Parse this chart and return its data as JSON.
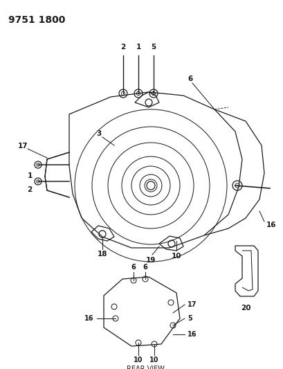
{
  "title": "9751 1800",
  "bg_color": "#ffffff",
  "line_color": "#1a1a1a",
  "title_fontsize": 10,
  "label_fontsize": 7.5,
  "rear_view_label": "REAR VIEW"
}
